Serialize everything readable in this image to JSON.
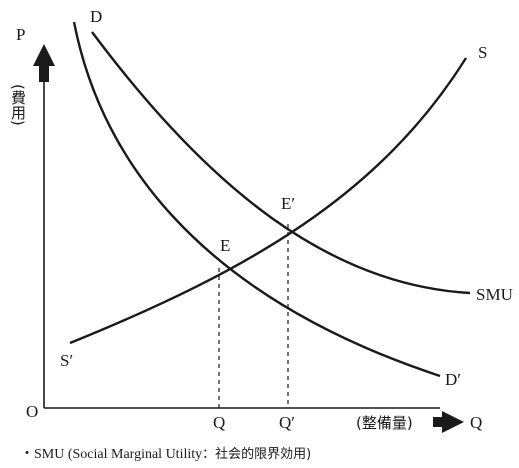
{
  "axes": {
    "origin_label": "O",
    "y_axis_label": "P",
    "y_axis_sublabel": "(費用)",
    "x_axis_label": "Q",
    "x_axis_sublabel": "(整備量)"
  },
  "curves": {
    "demand_private": "D",
    "demand_social": "D′",
    "supply": "S",
    "supply_start": "S′",
    "social_marginal_utility": "SMU"
  },
  "points": {
    "equilibrium": "E",
    "equilibrium_social": "E′"
  },
  "x_ticks": {
    "q": "Q",
    "q_prime": "Q′"
  },
  "footnote": {
    "bullet": "・",
    "text_latin": "SMU (Social Marginal Utility",
    "text_jp": "：社会的限界効用)"
  },
  "colors": {
    "ink": "#1a1a1a",
    "background": "#ffffff"
  }
}
